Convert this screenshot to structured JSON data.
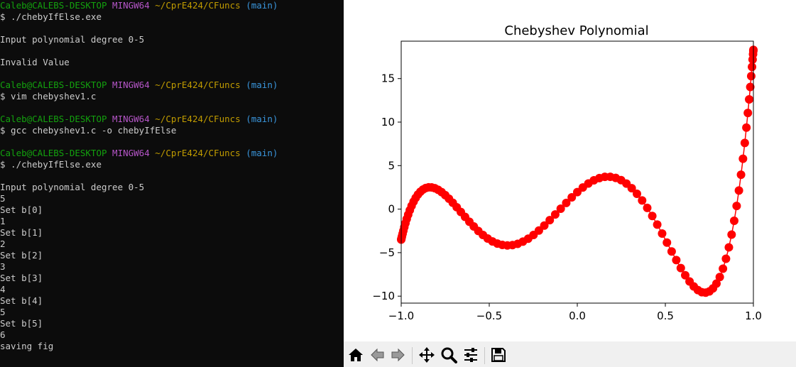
{
  "terminal": {
    "lines": [
      {
        "segs": [
          {
            "t": "Caleb@CALEBS-DESKTOP",
            "c": "user"
          },
          {
            "t": " "
          },
          {
            "t": "MINGW64",
            "c": "host"
          },
          {
            "t": " "
          },
          {
            "t": "~/CprE424/CFuncs",
            "c": "path"
          },
          {
            "t": " "
          },
          {
            "t": "(main)",
            "c": "branch"
          }
        ]
      },
      {
        "segs": [
          {
            "t": "$ ./chebyIfElse.exe"
          }
        ]
      },
      {
        "segs": [
          {
            "t": ""
          }
        ]
      },
      {
        "segs": [
          {
            "t": "Input polynomial degree 0-5"
          }
        ]
      },
      {
        "segs": [
          {
            "t": ""
          }
        ]
      },
      {
        "segs": [
          {
            "t": "Invalid Value"
          }
        ]
      },
      {
        "segs": [
          {
            "t": ""
          }
        ]
      },
      {
        "segs": [
          {
            "t": "Caleb@CALEBS-DESKTOP",
            "c": "user"
          },
          {
            "t": " "
          },
          {
            "t": "MINGW64",
            "c": "host"
          },
          {
            "t": " "
          },
          {
            "t": "~/CprE424/CFuncs",
            "c": "path"
          },
          {
            "t": " "
          },
          {
            "t": "(main)",
            "c": "branch"
          }
        ]
      },
      {
        "segs": [
          {
            "t": "$ vim chebyshev1.c"
          }
        ]
      },
      {
        "segs": [
          {
            "t": ""
          }
        ]
      },
      {
        "segs": [
          {
            "t": "Caleb@CALEBS-DESKTOP",
            "c": "user"
          },
          {
            "t": " "
          },
          {
            "t": "MINGW64",
            "c": "host"
          },
          {
            "t": " "
          },
          {
            "t": "~/CprE424/CFuncs",
            "c": "path"
          },
          {
            "t": " "
          },
          {
            "t": "(main)",
            "c": "branch"
          }
        ]
      },
      {
        "segs": [
          {
            "t": "$ gcc chebyshev1.c -o chebyIfElse"
          }
        ]
      },
      {
        "segs": [
          {
            "t": ""
          }
        ]
      },
      {
        "segs": [
          {
            "t": "Caleb@CALEBS-DESKTOP",
            "c": "user"
          },
          {
            "t": " "
          },
          {
            "t": "MINGW64",
            "c": "host"
          },
          {
            "t": " "
          },
          {
            "t": "~/CprE424/CFuncs",
            "c": "path"
          },
          {
            "t": " "
          },
          {
            "t": "(main)",
            "c": "branch"
          }
        ]
      },
      {
        "segs": [
          {
            "t": "$ ./chebyIfElse.exe"
          }
        ]
      },
      {
        "segs": [
          {
            "t": ""
          }
        ]
      },
      {
        "segs": [
          {
            "t": "Input polynomial degree 0-5"
          }
        ]
      },
      {
        "segs": [
          {
            "t": "5"
          }
        ]
      },
      {
        "segs": [
          {
            "t": "Set b[0]"
          }
        ]
      },
      {
        "segs": [
          {
            "t": "1"
          }
        ]
      },
      {
        "segs": [
          {
            "t": "Set b[1]"
          }
        ]
      },
      {
        "segs": [
          {
            "t": "2"
          }
        ]
      },
      {
        "segs": [
          {
            "t": "Set b[2]"
          }
        ]
      },
      {
        "segs": [
          {
            "t": "3"
          }
        ]
      },
      {
        "segs": [
          {
            "t": "Set b[3]"
          }
        ]
      },
      {
        "segs": [
          {
            "t": "4"
          }
        ]
      },
      {
        "segs": [
          {
            "t": "Set b[4]"
          }
        ]
      },
      {
        "segs": [
          {
            "t": "5"
          }
        ]
      },
      {
        "segs": [
          {
            "t": "Set b[5]"
          }
        ]
      },
      {
        "segs": [
          {
            "t": "6"
          }
        ]
      },
      {
        "segs": [
          {
            "t": "saving fig"
          }
        ]
      }
    ],
    "colors": {
      "user": "#13a10e",
      "host": "#b455c6",
      "path": "#c19c00",
      "branch": "#3a96dd",
      "text": "#cccccc",
      "background": "#0c0c0c"
    }
  },
  "figure": {
    "toolbar": [
      {
        "name": "home-button",
        "icon": "home-icon"
      },
      {
        "name": "back-button",
        "icon": "arrow-left-icon"
      },
      {
        "name": "forward-button",
        "icon": "arrow-right-icon"
      },
      {
        "name": "pan-button",
        "icon": "move-icon"
      },
      {
        "name": "zoom-button",
        "icon": "magnifier-icon"
      },
      {
        "name": "configure-subplots-button",
        "icon": "sliders-icon"
      },
      {
        "name": "save-button",
        "icon": "floppy-disk-icon"
      }
    ]
  },
  "chart_data": {
    "type": "line",
    "title": "Chebyshev Polynomial",
    "xlabel": "",
    "ylabel": "",
    "xlim": [
      -1.0,
      1.0
    ],
    "ylim": [
      -10.8,
      19.3
    ],
    "xticks": [
      -1.0,
      -0.5,
      0.0,
      0.5,
      1.0
    ],
    "xtick_labels": [
      "−1.0",
      "−0.5",
      "0.0",
      "0.5",
      "1.0"
    ],
    "yticks": [
      -10,
      -5,
      0,
      5,
      10,
      15
    ],
    "ytick_labels": [
      "−10",
      "−5",
      "0",
      "5",
      "10",
      "15"
    ],
    "grid": false,
    "marker": "circle",
    "color": "#ff0000",
    "coefficients": [
      1,
      2,
      3,
      4,
      5,
      6
    ],
    "x_samples": "100 points at cos(k*pi/100), k = 1..99 plus endpoints",
    "key_points": [
      {
        "x": -1.0,
        "y": -3
      },
      {
        "x": -0.85,
        "y": 3.6
      },
      {
        "x": -0.4,
        "y": -3.6
      },
      {
        "x": 0.18,
        "y": 4.9
      },
      {
        "x": 0.72,
        "y": -9.6
      },
      {
        "x": 0.99,
        "y": 18.3
      }
    ]
  }
}
